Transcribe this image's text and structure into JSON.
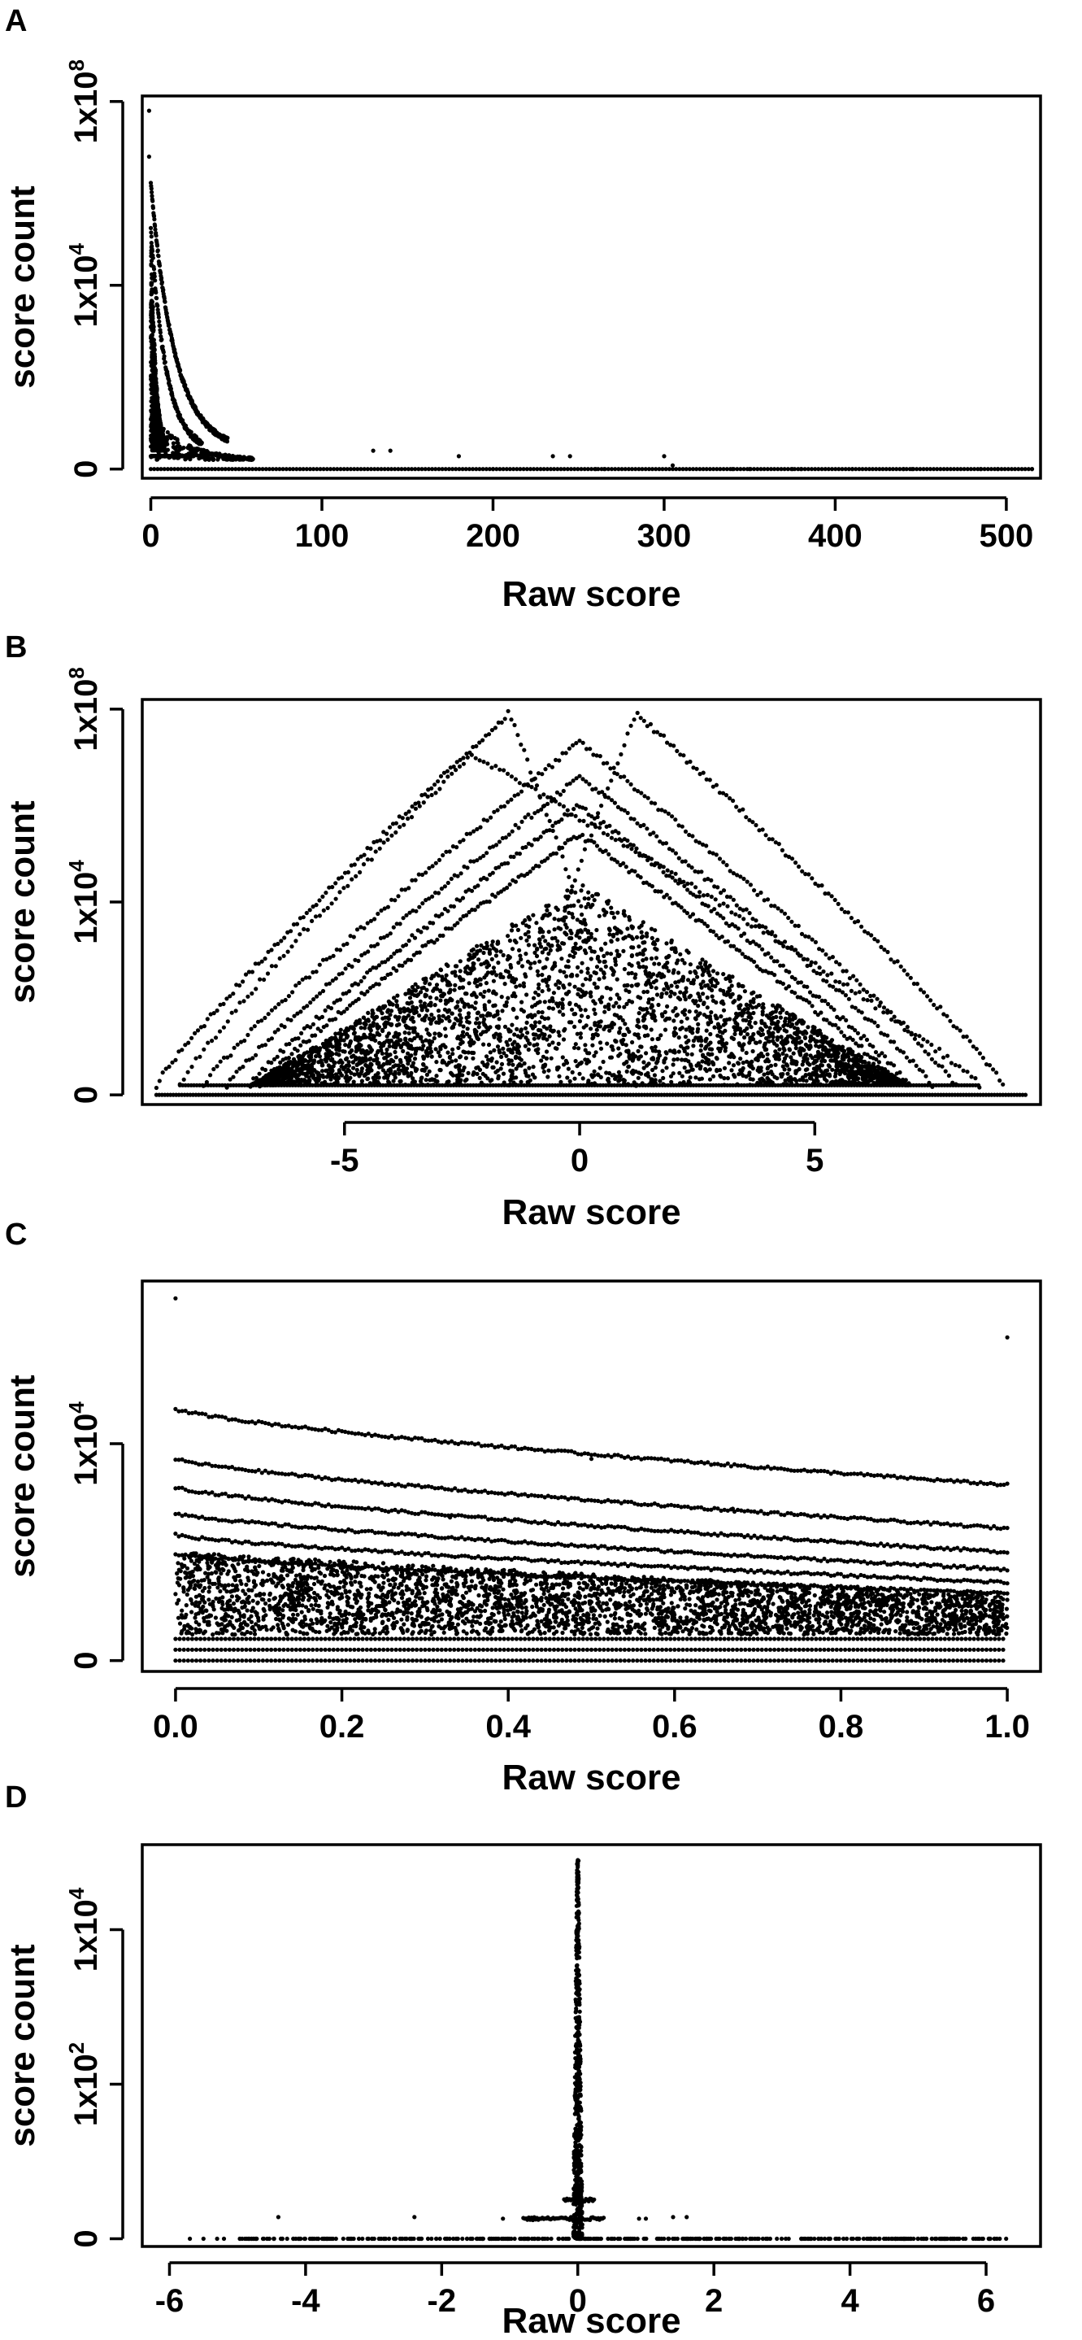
{
  "chart_data": [
    {
      "panel": "A",
      "type": "scatter",
      "xlabel": "Raw score",
      "ylabel": "score count",
      "xlim": [
        -5,
        520
      ],
      "x_ticks": [
        0,
        100,
        200,
        300,
        400,
        500
      ],
      "x_tick_labels": [
        "0",
        "100",
        "200",
        "300",
        "400",
        "500"
      ],
      "y_ticks": [
        0,
        1,
        2
      ],
      "y_tick_labels": [
        {
          "base": "0",
          "sup": ""
        },
        {
          "base": "1x10",
          "sup": "4"
        },
        {
          "base": "1x10",
          "sup": "8"
        }
      ],
      "ylim": [
        -0.05,
        2.03
      ],
      "bands": [
        {
          "x0": 0,
          "x1": 8,
          "y0": 0.1,
          "y1": 1.4,
          "density": 1000
        },
        {
          "x0": 0,
          "x1": 60,
          "y0": 0.05,
          "y1": 0.3,
          "density": 220
        }
      ],
      "curves": [
        {
          "x0": 0,
          "x1": 45,
          "ymax": 1.55,
          "decay": 14,
          "count": 260,
          "jitter": 0.025
        },
        {
          "x0": 0,
          "x1": 30,
          "ymax": 1.3,
          "decay": 9,
          "count": 160,
          "jitter": 0.03
        }
      ],
      "baselines": [
        {
          "y": 0.0,
          "x0": 0,
          "x1": 515
        },
        {
          "y": 0.07,
          "x0": 0,
          "x1": 25
        }
      ],
      "points": [
        [
          -1,
          1.95
        ],
        [
          -1,
          1.7
        ],
        [
          130,
          0.1
        ],
        [
          140,
          0.1
        ],
        [
          180,
          0.07
        ],
        [
          235,
          0.07
        ],
        [
          245,
          0.07
        ],
        [
          300,
          0.07
        ],
        [
          305,
          0.02
        ],
        [
          375,
          0.0
        ],
        [
          380,
          0.0
        ],
        [
          410,
          0.0
        ],
        [
          440,
          0.0
        ],
        [
          445,
          0.0
        ],
        [
          485,
          0.0
        ],
        [
          495,
          0.0
        ],
        [
          515,
          0.0
        ],
        [
          340,
          0.0
        ],
        [
          350,
          0.0
        ],
        [
          200,
          0.0
        ],
        [
          260,
          0.0
        ],
        [
          265,
          0.0
        ]
      ]
    },
    {
      "panel": "B",
      "type": "scatter",
      "xlabel": "Raw score",
      "ylabel": "score count",
      "xlim": [
        -9.3,
        9.8
      ],
      "x_ticks": [
        -5,
        0,
        5
      ],
      "x_tick_labels": [
        "-5",
        "0",
        "5"
      ],
      "y_ticks": [
        0,
        1,
        2
      ],
      "y_tick_labels": [
        {
          "base": "0",
          "sup": ""
        },
        {
          "base": "1x10",
          "sup": "4"
        },
        {
          "base": "1x10",
          "sup": "8"
        }
      ],
      "ylim": [
        -0.05,
        2.05
      ],
      "triangle": {
        "apex_x": 0,
        "apex_y": 1.1,
        "left_x": -7.0,
        "right_x": 7.0,
        "base_y": 0.05,
        "density": 3500
      },
      "arcs": [
        {
          "apex_x": -1.5,
          "apex_y": 1.98,
          "left_x": -9.0,
          "right_x": 1.2,
          "count": 150
        },
        {
          "apex_x": 1.2,
          "apex_y": 1.98,
          "left_x": -1.5,
          "right_x": 9.0,
          "count": 150
        },
        {
          "apex_x": -2.3,
          "apex_y": 1.77,
          "left_x": -8.5,
          "right_x": 8.5,
          "count": 200
        },
        {
          "apex_x": 0,
          "apex_y": 1.83,
          "left_x": -8.0,
          "right_x": 8.0,
          "count": 220
        },
        {
          "apex_x": 0,
          "apex_y": 1.65,
          "left_x": -7.5,
          "right_x": 7.5,
          "count": 220
        },
        {
          "apex_x": 0,
          "apex_y": 1.5,
          "left_x": -7.0,
          "right_x": 7.0,
          "count": 220
        },
        {
          "apex_x": 0,
          "apex_y": 1.35,
          "left_x": -6.8,
          "right_x": 6.8,
          "count": 220
        }
      ],
      "baselines": [
        {
          "y": 0.0,
          "x0": -9.0,
          "x1": 9.5
        },
        {
          "y": 0.05,
          "x0": -8.5,
          "x1": 8.5
        }
      ]
    },
    {
      "panel": "C",
      "type": "scatter",
      "xlabel": "Raw score",
      "ylabel": "score count",
      "xlim": [
        -0.04,
        1.04
      ],
      "x_ticks": [
        0.0,
        0.2,
        0.4,
        0.6,
        0.8,
        1.0
      ],
      "x_tick_labels": [
        "0.0",
        "0.2",
        "0.4",
        "0.6",
        "0.8",
        "1.0"
      ],
      "y_ticks": [
        0,
        1
      ],
      "y_tick_labels": [
        {
          "base": "0",
          "sup": ""
        },
        {
          "base": "1x10",
          "sup": "4"
        }
      ],
      "ylim": [
        -0.05,
        1.75
      ],
      "curves": [
        {
          "y_start": 1.16,
          "y_end": 0.81
        },
        {
          "y_start": 0.93,
          "y_end": 0.61
        },
        {
          "y_start": 0.8,
          "y_end": 0.5
        },
        {
          "y_start": 0.68,
          "y_end": 0.42
        },
        {
          "y_start": 0.58,
          "y_end": 0.36
        },
        {
          "y_start": 0.49,
          "y_end": 0.31
        }
      ],
      "band": {
        "y_bottom": 0.12,
        "y_top_start": 0.5,
        "y_top_end": 0.3,
        "density": 3500
      },
      "baselines": [
        {
          "y": 0.0
        },
        {
          "y": 0.05
        },
        {
          "y": 0.1
        }
      ],
      "points": [
        [
          0.0,
          1.67
        ],
        [
          1.0,
          1.49
        ],
        [
          0.5,
          0.93
        ],
        [
          0.33,
          0.66
        ],
        [
          0.67,
          0.7
        ]
      ]
    },
    {
      "panel": "D",
      "type": "scatter",
      "xlabel": "Raw score",
      "ylabel": "score count",
      "xlim": [
        -6.4,
        6.8
      ],
      "x_ticks": [
        -6,
        -4,
        -2,
        0,
        2,
        4,
        6
      ],
      "x_tick_labels": [
        "-6",
        "-4",
        "-2",
        "0",
        "2",
        "4",
        "6"
      ],
      "y_ticks": [
        0,
        1,
        2
      ],
      "y_tick_labels": [
        {
          "base": "0",
          "sup": ""
        },
        {
          "base": "1x10",
          "sup": "2"
        },
        {
          "base": "1x10",
          "sup": "4"
        }
      ],
      "ylim": [
        -0.05,
        2.55
      ],
      "spike": {
        "x": 0.0,
        "y_top": 2.45,
        "count": 600
      },
      "wide_bars": [
        {
          "y": 0.13,
          "x0": -0.8,
          "x1": 0.4
        },
        {
          "y": 0.25,
          "x0": -0.2,
          "x1": 0.25
        }
      ],
      "baselines": [
        {
          "y": 0.0,
          "x0": -5.0,
          "x1": 6.3,
          "density": 400
        }
      ],
      "points": [
        [
          -5.7,
          0.0
        ],
        [
          -5.5,
          0.0
        ],
        [
          -5.3,
          0.0
        ],
        [
          -5.2,
          0.0
        ],
        [
          -4.4,
          0.14
        ],
        [
          -2.4,
          0.14
        ],
        [
          -1.1,
          0.13
        ],
        [
          0.9,
          0.13
        ],
        [
          1.0,
          0.13
        ],
        [
          1.4,
          0.14
        ],
        [
          1.6,
          0.14
        ],
        [
          5.0,
          0.0
        ],
        [
          5.4,
          0.0
        ],
        [
          5.5,
          0.0
        ],
        [
          5.9,
          0.0
        ],
        [
          6.2,
          0.0
        ],
        [
          4.1,
          0.0
        ],
        [
          4.3,
          0.0
        ],
        [
          4.5,
          0.0
        ]
      ]
    }
  ]
}
